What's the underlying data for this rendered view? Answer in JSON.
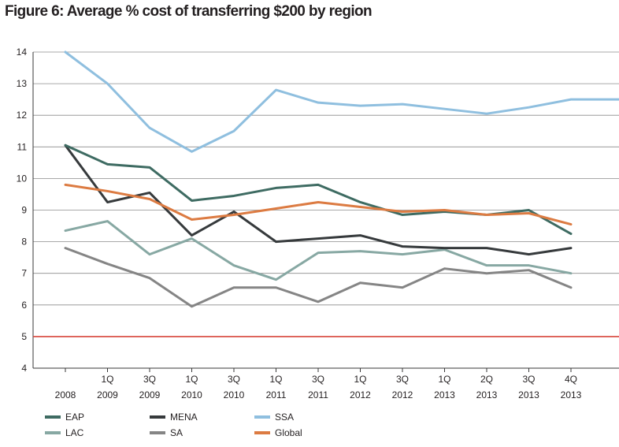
{
  "figure_title": "Figure 6: Average % cost of transferring $200 by region",
  "chart_data": {
    "type": "line",
    "title": "Figure 6: Average % cost of transferring $200 by region",
    "xlabel": "",
    "ylabel": "",
    "ylim": [
      4,
      14
    ],
    "yticks": [
      4,
      5,
      6,
      7,
      8,
      9,
      10,
      11,
      12,
      13,
      14
    ],
    "grid": true,
    "legend_position": "bottom-left",
    "categories": [
      [
        "",
        "2008"
      ],
      [
        "1Q",
        "2009"
      ],
      [
        "3Q",
        "2009"
      ],
      [
        "1Q",
        "2010"
      ],
      [
        "3Q",
        "2010"
      ],
      [
        "1Q",
        "2011"
      ],
      [
        "3Q",
        "2011"
      ],
      [
        "1Q",
        "2012"
      ],
      [
        "3Q",
        "2012"
      ],
      [
        "1Q",
        "2013"
      ],
      [
        "2Q",
        "2013"
      ],
      [
        "3Q",
        "2013"
      ],
      [
        "4Q",
        "2013"
      ]
    ],
    "series": [
      {
        "name": "EAP",
        "color": "#3e6b62",
        "values": [
          11.05,
          10.45,
          10.35,
          9.3,
          9.45,
          9.7,
          9.8,
          9.25,
          8.85,
          8.95,
          8.85,
          9.0,
          8.25
        ]
      },
      {
        "name": "MENA",
        "color": "#363a3c",
        "values": [
          11.05,
          9.25,
          9.55,
          8.2,
          8.95,
          8.0,
          8.1,
          8.2,
          7.85,
          7.8,
          7.8,
          7.6,
          7.8
        ]
      },
      {
        "name": "SSA",
        "color": "#8fbfdf",
        "values": [
          14.0,
          13.0,
          11.6,
          10.85,
          11.5,
          12.8,
          12.4,
          12.3,
          12.35,
          12.2,
          12.05,
          12.25,
          12.5
        ]
      },
      {
        "name": "LAC",
        "color": "#87a8a3",
        "values": [
          8.35,
          8.65,
          7.6,
          8.1,
          7.25,
          6.8,
          7.65,
          7.7,
          7.6,
          7.75,
          7.25,
          7.25,
          7.0
        ]
      },
      {
        "name": "SA",
        "color": "#858585",
        "values": [
          7.8,
          7.3,
          6.85,
          5.95,
          6.55,
          6.55,
          6.1,
          6.7,
          6.55,
          7.15,
          7.0,
          7.1,
          6.55
        ]
      },
      {
        "name": "Global",
        "color": "#dc7b42",
        "values": [
          9.8,
          9.6,
          9.35,
          8.7,
          8.85,
          9.05,
          9.25,
          9.1,
          8.95,
          9.0,
          8.85,
          8.9,
          8.55
        ]
      }
    ],
    "tail": {
      "series": "SSA",
      "value": 12.5
    },
    "reference_line": {
      "value": 5,
      "color": "#d7453a"
    }
  },
  "colors": {
    "gridline": "#8c8c8c",
    "axis": "#3a3a3a",
    "text": "#231f20"
  }
}
